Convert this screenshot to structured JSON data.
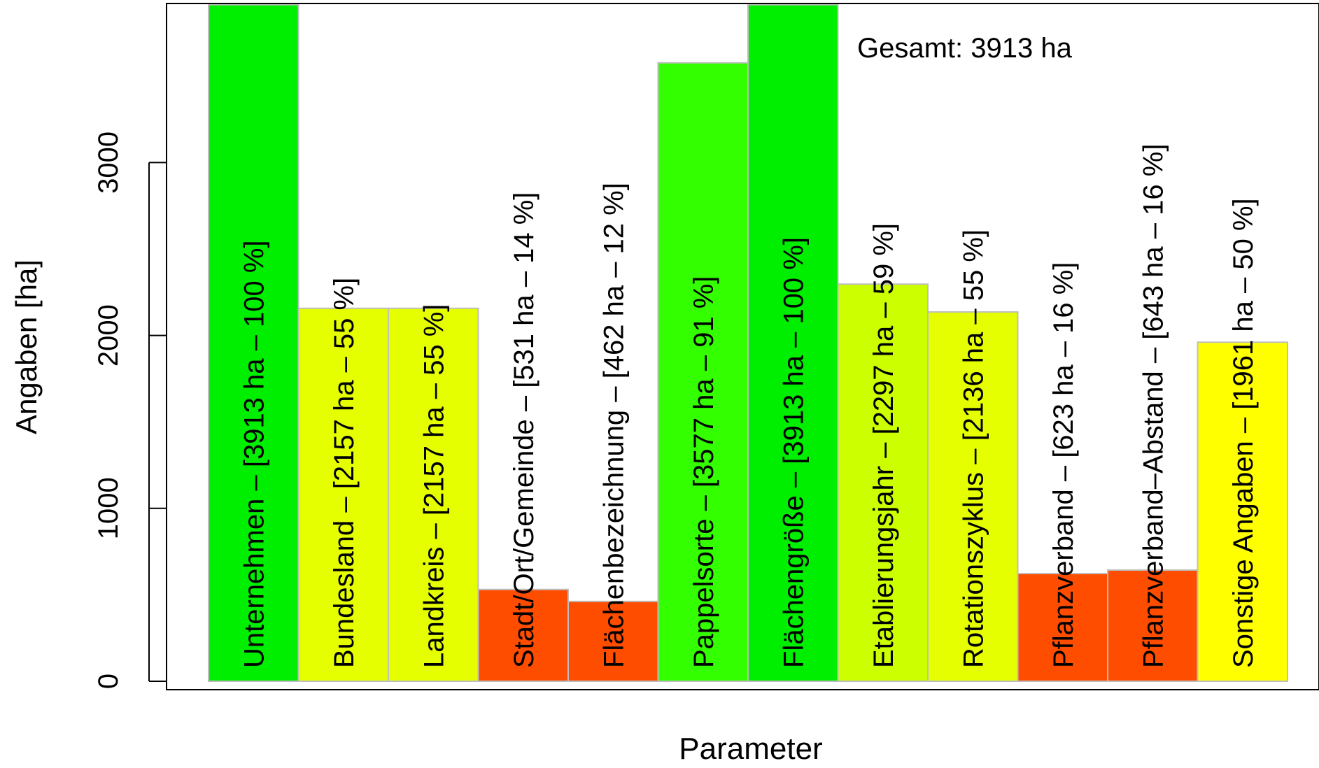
{
  "chart_data": {
    "type": "bar",
    "categories": [
      "Unternehmen",
      "Bundesland",
      "Landkreis",
      "Stadt/Ort/Gemeinde",
      "Flächenbezeichnung",
      "Pappelsorte",
      "Flächengröße",
      "Etablierungsjahr",
      "Rotationszyklus",
      "Pflanzverband",
      "Pflanzverband–Abstand",
      "Sonstige Angaben"
    ],
    "values": [
      3913,
      2157,
      2157,
      531,
      462,
      3577,
      3913,
      2297,
      2136,
      623,
      643,
      1961
    ],
    "percents": [
      100,
      55,
      55,
      14,
      12,
      91,
      100,
      59,
      55,
      16,
      16,
      50
    ],
    "bar_labels": [
      "Unternehmen – [3913 ha – 100 %]",
      "Bundesland – [2157 ha – 55 %]",
      "Landkreis – [2157 ha – 55 %]",
      "Stadt/Ort/Gemeinde – [531 ha – 14 %]",
      "Flächenbezeichnung – [462 ha – 12 %]",
      "Pappelsorte – [3577 ha – 91 %]",
      "Flächengröße – [3913 ha – 100 %]",
      "Etablierungsjahr – [2297 ha – 59 %]",
      "Rotationszyklus – [2136 ha – 55 %]",
      "Pflanzverband – [623 ha – 16 %]",
      "Pflanzverband–Abstand – [643 ha – 16 %]",
      "Sonstige Angaben – [1961 ha – 50 %]"
    ],
    "colors": [
      "#00ee00",
      "#e5ff00",
      "#e5ff00",
      "#ff4d00",
      "#ff4d00",
      "#33ff00",
      "#00ee00",
      "#ccff00",
      "#e5ff00",
      "#ff4d00",
      "#ff4d00",
      "#ffff00"
    ],
    "annotation": "Gesamt: 3913 ha",
    "xlabel": "Parameter",
    "ylabel": "Angaben [ha]",
    "yticks": [
      0,
      1000,
      2000,
      3000
    ],
    "ylim": [
      0,
      3913
    ],
    "grid": false,
    "legend": "none"
  }
}
